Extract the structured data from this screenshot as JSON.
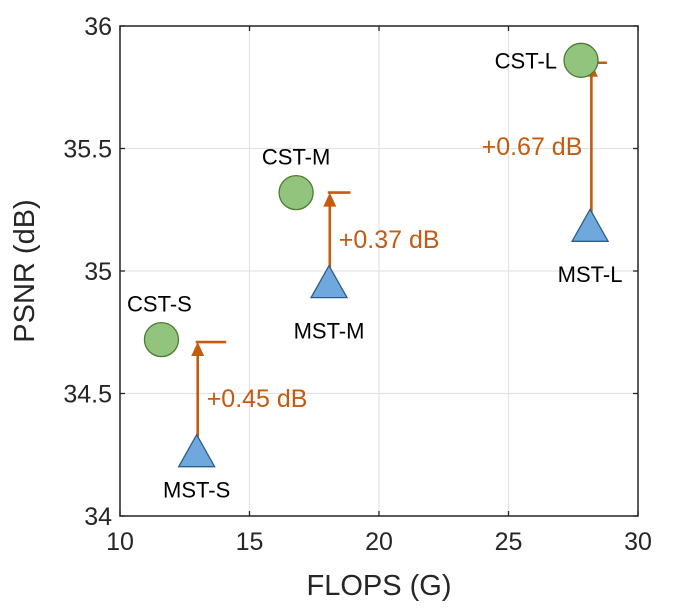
{
  "chart_data": {
    "type": "scatter",
    "title": "",
    "xlabel": "FLOPS (G)",
    "ylabel": "PSNR (dB)",
    "xlim": [
      10,
      30
    ],
    "ylim": [
      34,
      36
    ],
    "xticks": [
      10,
      15,
      20,
      25,
      30
    ],
    "yticks": [
      34,
      34.5,
      35,
      35.5,
      36
    ],
    "ytick_labels": [
      "34",
      "34.5",
      "35",
      "35.5",
      "36"
    ],
    "grid": true,
    "series": [
      {
        "name": "CST",
        "marker": "circle",
        "color": "#93c47d",
        "points": [
          {
            "label": "CST-S",
            "x": 11.6,
            "y": 34.72
          },
          {
            "label": "CST-M",
            "x": 16.8,
            "y": 35.32
          },
          {
            "label": "CST-L",
            "x": 27.8,
            "y": 35.86
          }
        ]
      },
      {
        "name": "MST",
        "marker": "triangle",
        "color": "#6fa8dc",
        "points": [
          {
            "label": "MST-S",
            "x": 12.96,
            "y": 34.26
          },
          {
            "label": "MST-M",
            "x": 18.07,
            "y": 34.95
          },
          {
            "label": "MST-L",
            "x": 28.15,
            "y": 35.18
          }
        ]
      }
    ],
    "annotations": [
      {
        "text": "+0.45 dB",
        "x": 13.0,
        "y_from": 34.26,
        "y_to": 34.71,
        "cap_x_end": 14.1
      },
      {
        "text": "+0.37 dB",
        "x": 18.1,
        "y_from": 34.95,
        "y_to": 35.32,
        "cap_x_end": 18.9
      },
      {
        "text": "+0.67 dB",
        "x": 28.2,
        "y_from": 35.18,
        "y_to": 35.85,
        "cap_x_end": 28.8
      }
    ],
    "annotation_color": "#c55a11"
  }
}
